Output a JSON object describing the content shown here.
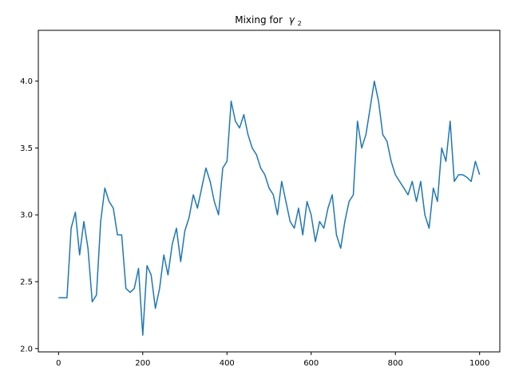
{
  "chart_data": {
    "type": "line",
    "title": "Mixing for",
    "title_symbol": "γ",
    "title_subscript": "2",
    "xlabel": "",
    "ylabel": "",
    "xlim": [
      -48,
      1048
    ],
    "ylim": [
      1.975,
      4.38
    ],
    "xticks": [
      0,
      200,
      400,
      600,
      800,
      1000
    ],
    "xtick_labels": [
      "0",
      "200",
      "400",
      "600",
      "800",
      "1000"
    ],
    "yticks": [
      2.0,
      2.5,
      3.0,
      3.5,
      4.0
    ],
    "ytick_labels": [
      "2.0",
      "2.5",
      "3.0",
      "3.5",
      "4.0"
    ],
    "grid": false,
    "series": [
      {
        "color": "#1f77b4",
        "x": [
          0,
          20,
          30,
          40,
          50,
          60,
          70,
          80,
          90,
          100,
          110,
          120,
          130,
          140,
          150,
          160,
          170,
          180,
          190,
          200,
          210,
          220,
          230,
          240,
          250,
          260,
          270,
          280,
          290,
          300,
          310,
          320,
          330,
          340,
          350,
          360,
          370,
          380,
          390,
          400,
          410,
          420,
          430,
          440,
          450,
          460,
          470,
          480,
          490,
          500,
          510,
          520,
          530,
          540,
          550,
          560,
          570,
          580,
          590,
          600,
          610,
          620,
          630,
          640,
          650,
          660,
          670,
          680,
          690,
          700,
          710,
          720,
          730,
          740,
          750,
          760,
          770,
          780,
          790,
          800,
          810,
          820,
          830,
          840,
          850,
          860,
          870,
          880,
          890,
          900,
          910,
          920,
          930,
          940,
          950,
          960,
          970,
          980,
          990,
          1000
        ],
        "y": [
          2.38,
          2.38,
          2.9,
          3.02,
          2.7,
          2.95,
          2.75,
          2.35,
          2.4,
          2.95,
          3.2,
          3.1,
          3.05,
          2.85,
          2.85,
          2.45,
          2.42,
          2.45,
          2.6,
          2.1,
          2.62,
          2.55,
          2.3,
          2.45,
          2.7,
          2.55,
          2.78,
          2.9,
          2.65,
          2.88,
          2.98,
          3.15,
          3.05,
          3.2,
          3.35,
          3.25,
          3.1,
          3.0,
          3.35,
          3.4,
          3.85,
          3.7,
          3.65,
          3.75,
          3.6,
          3.5,
          3.45,
          3.35,
          3.3,
          3.2,
          3.15,
          3.0,
          3.25,
          3.1,
          2.95,
          2.9,
          3.05,
          2.85,
          3.1,
          3.0,
          2.8,
          2.95,
          2.9,
          3.05,
          3.15,
          2.85,
          2.75,
          2.95,
          3.1,
          3.15,
          3.7,
          3.5,
          3.6,
          3.8,
          4.0,
          3.85,
          3.6,
          3.55,
          3.4,
          3.3,
          3.25,
          3.2,
          3.15,
          3.25,
          3.1,
          3.25,
          3.0,
          2.9,
          3.2,
          3.1,
          3.5,
          3.4,
          3.7,
          3.25,
          3.3,
          3.3,
          3.28,
          3.25,
          3.4,
          3.3
        ]
      }
    ]
  }
}
